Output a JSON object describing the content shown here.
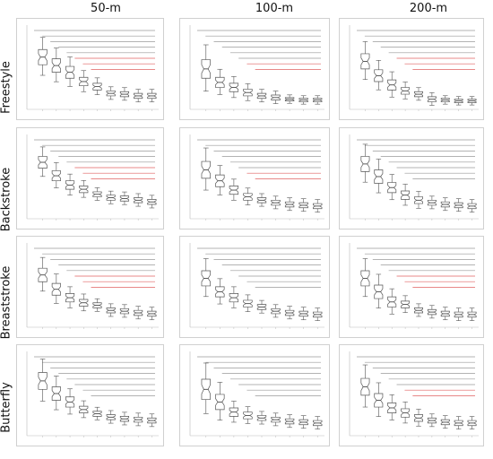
{
  "figure": {
    "column_titles": [
      "50-m",
      "100-m",
      "200-m"
    ],
    "row_titles": [
      "Freestyle",
      "Backstroke",
      "Breaststroke",
      "Butterfly"
    ],
    "panel_stats_line1": "",
    "panel_stats_line2": "",
    "x_axis_label": "",
    "colors": {
      "box": "#555555",
      "sig_gray": "#9a9a9a",
      "sig_red": "#e06060",
      "frame": "#d0d0d0"
    }
  },
  "chart_data": [
    {
      "stroke": "Freestyle",
      "distance": "50-m",
      "type": "boxplot",
      "red_bars": 3,
      "medians": [
        0.62,
        0.52,
        0.44,
        0.33,
        0.27,
        0.19,
        0.18,
        0.16,
        0.16
      ],
      "q_spread": [
        0.09,
        0.08,
        0.07,
        0.05,
        0.04,
        0.03,
        0.03,
        0.03,
        0.03
      ]
    },
    {
      "stroke": "Freestyle",
      "distance": "100-m",
      "type": "boxplot",
      "red_bars": 2,
      "medians": [
        0.48,
        0.32,
        0.26,
        0.2,
        0.16,
        0.14,
        0.12,
        0.11,
        0.11
      ],
      "q_spread": [
        0.11,
        0.06,
        0.05,
        0.04,
        0.03,
        0.03,
        0.02,
        0.02,
        0.02
      ]
    },
    {
      "stroke": "Freestyle",
      "distance": "200-m",
      "type": "boxplot",
      "red_bars": 3,
      "medians": [
        0.57,
        0.4,
        0.29,
        0.22,
        0.18,
        0.12,
        0.11,
        0.1,
        0.1
      ],
      "q_spread": [
        0.09,
        0.07,
        0.06,
        0.04,
        0.03,
        0.03,
        0.02,
        0.02,
        0.02
      ]
    },
    {
      "stroke": "Backstroke",
      "distance": "50-m",
      "type": "boxplot",
      "red_bars": 3,
      "medians": [
        0.67,
        0.51,
        0.4,
        0.35,
        0.29,
        0.25,
        0.24,
        0.22,
        0.2
      ],
      "q_spread": [
        0.07,
        0.06,
        0.05,
        0.04,
        0.03,
        0.03,
        0.03,
        0.03,
        0.03
      ]
    },
    {
      "stroke": "Backstroke",
      "distance": "100-m",
      "type": "boxplot",
      "red_bars": 2,
      "medians": [
        0.58,
        0.45,
        0.34,
        0.26,
        0.22,
        0.19,
        0.17,
        0.16,
        0.15
      ],
      "q_spread": [
        0.1,
        0.07,
        0.05,
        0.04,
        0.03,
        0.03,
        0.03,
        0.03,
        0.03
      ]
    },
    {
      "stroke": "Backstroke",
      "distance": "200-m",
      "type": "boxplot",
      "red_bars": 0,
      "medians": [
        0.65,
        0.5,
        0.37,
        0.28,
        0.22,
        0.19,
        0.17,
        0.16,
        0.15
      ],
      "q_spread": [
        0.09,
        0.08,
        0.06,
        0.05,
        0.04,
        0.03,
        0.03,
        0.03,
        0.03
      ]
    },
    {
      "stroke": "Breaststroke",
      "distance": "50-m",
      "type": "boxplot",
      "red_bars": 3,
      "medians": [
        0.62,
        0.45,
        0.35,
        0.29,
        0.26,
        0.2,
        0.19,
        0.17,
        0.16
      ],
      "q_spread": [
        0.08,
        0.07,
        0.05,
        0.04,
        0.03,
        0.03,
        0.03,
        0.03,
        0.03
      ]
    },
    {
      "stroke": "Breaststroke",
      "distance": "100-m",
      "type": "boxplot",
      "red_bars": 0,
      "medians": [
        0.58,
        0.42,
        0.35,
        0.28,
        0.24,
        0.19,
        0.17,
        0.16,
        0.15
      ],
      "q_spread": [
        0.09,
        0.06,
        0.05,
        0.04,
        0.03,
        0.03,
        0.03,
        0.03,
        0.03
      ]
    },
    {
      "stroke": "Breaststroke",
      "distance": "200-m",
      "type": "boxplot",
      "red_bars": 3,
      "medians": [
        0.58,
        0.42,
        0.3,
        0.27,
        0.2,
        0.18,
        0.16,
        0.15,
        0.15
      ],
      "q_spread": [
        0.09,
        0.08,
        0.06,
        0.04,
        0.03,
        0.03,
        0.03,
        0.03,
        0.03
      ]
    },
    {
      "stroke": "Butterfly",
      "distance": "50-m",
      "type": "boxplot",
      "red_bars": 0,
      "medians": [
        0.65,
        0.5,
        0.4,
        0.31,
        0.26,
        0.22,
        0.2,
        0.19,
        0.18
      ],
      "q_spread": [
        0.1,
        0.08,
        0.06,
        0.04,
        0.03,
        0.03,
        0.03,
        0.03,
        0.03
      ]
    },
    {
      "stroke": "Butterfly",
      "distance": "100-m",
      "type": "boxplot",
      "red_bars": 0,
      "medians": [
        0.55,
        0.4,
        0.28,
        0.24,
        0.21,
        0.19,
        0.17,
        0.16,
        0.15
      ],
      "q_spread": [
        0.12,
        0.09,
        0.05,
        0.04,
        0.03,
        0.03,
        0.03,
        0.03,
        0.03
      ]
    },
    {
      "stroke": "Butterfly",
      "distance": "200-m",
      "type": "boxplot",
      "red_bars": 2,
      "medians": [
        0.58,
        0.42,
        0.33,
        0.27,
        0.21,
        0.18,
        0.16,
        0.15,
        0.15
      ],
      "q_spread": [
        0.1,
        0.08,
        0.06,
        0.05,
        0.04,
        0.03,
        0.03,
        0.03,
        0.03
      ]
    }
  ]
}
